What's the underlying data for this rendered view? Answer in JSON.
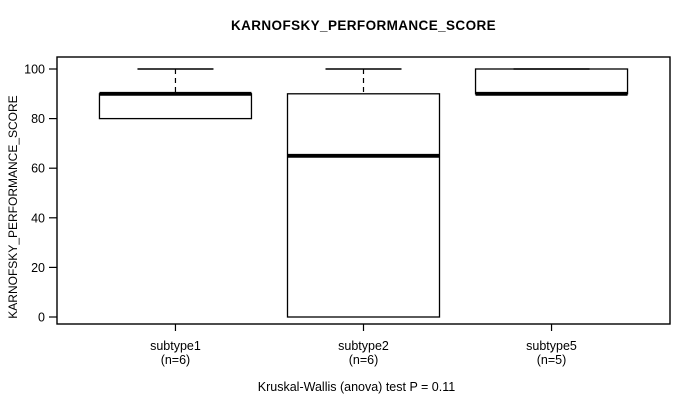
{
  "chart_data": {
    "type": "boxplot",
    "title": "KARNOFSKY_PERFORMANCE_SCORE",
    "ylabel": "KARNOFSKY_PERFORMANCE_SCORE",
    "xlabel": "",
    "footer": "Kruskal-Wallis (anova) test P = 0.11",
    "ylim": [
      0,
      100
    ],
    "yticks": [
      0,
      20,
      40,
      60,
      80,
      100
    ],
    "grid": false,
    "legend": false,
    "categories": [
      "subtype1",
      "subtype2",
      "subtype5"
    ],
    "boxes": [
      {
        "label": "subtype1",
        "count_label": "(n=6)",
        "n": 6,
        "min": 80,
        "q1": 80,
        "median": 90,
        "q3": 90,
        "max": 100
      },
      {
        "label": "subtype2",
        "count_label": "(n=6)",
        "n": 6,
        "min": 0,
        "q1": 0,
        "median": 65,
        "q3": 90,
        "max": 100
      },
      {
        "label": "subtype5",
        "count_label": "(n=5)",
        "n": 5,
        "min": 90,
        "q1": 90,
        "median": 90,
        "q3": 100,
        "max": 100
      }
    ],
    "stat_test": {
      "name": "Kruskal-Wallis (anova)",
      "p_value": "0.11"
    },
    "colors": {
      "line": "#000000",
      "box_fill": "#ffffff",
      "background": "#ffffff"
    }
  }
}
